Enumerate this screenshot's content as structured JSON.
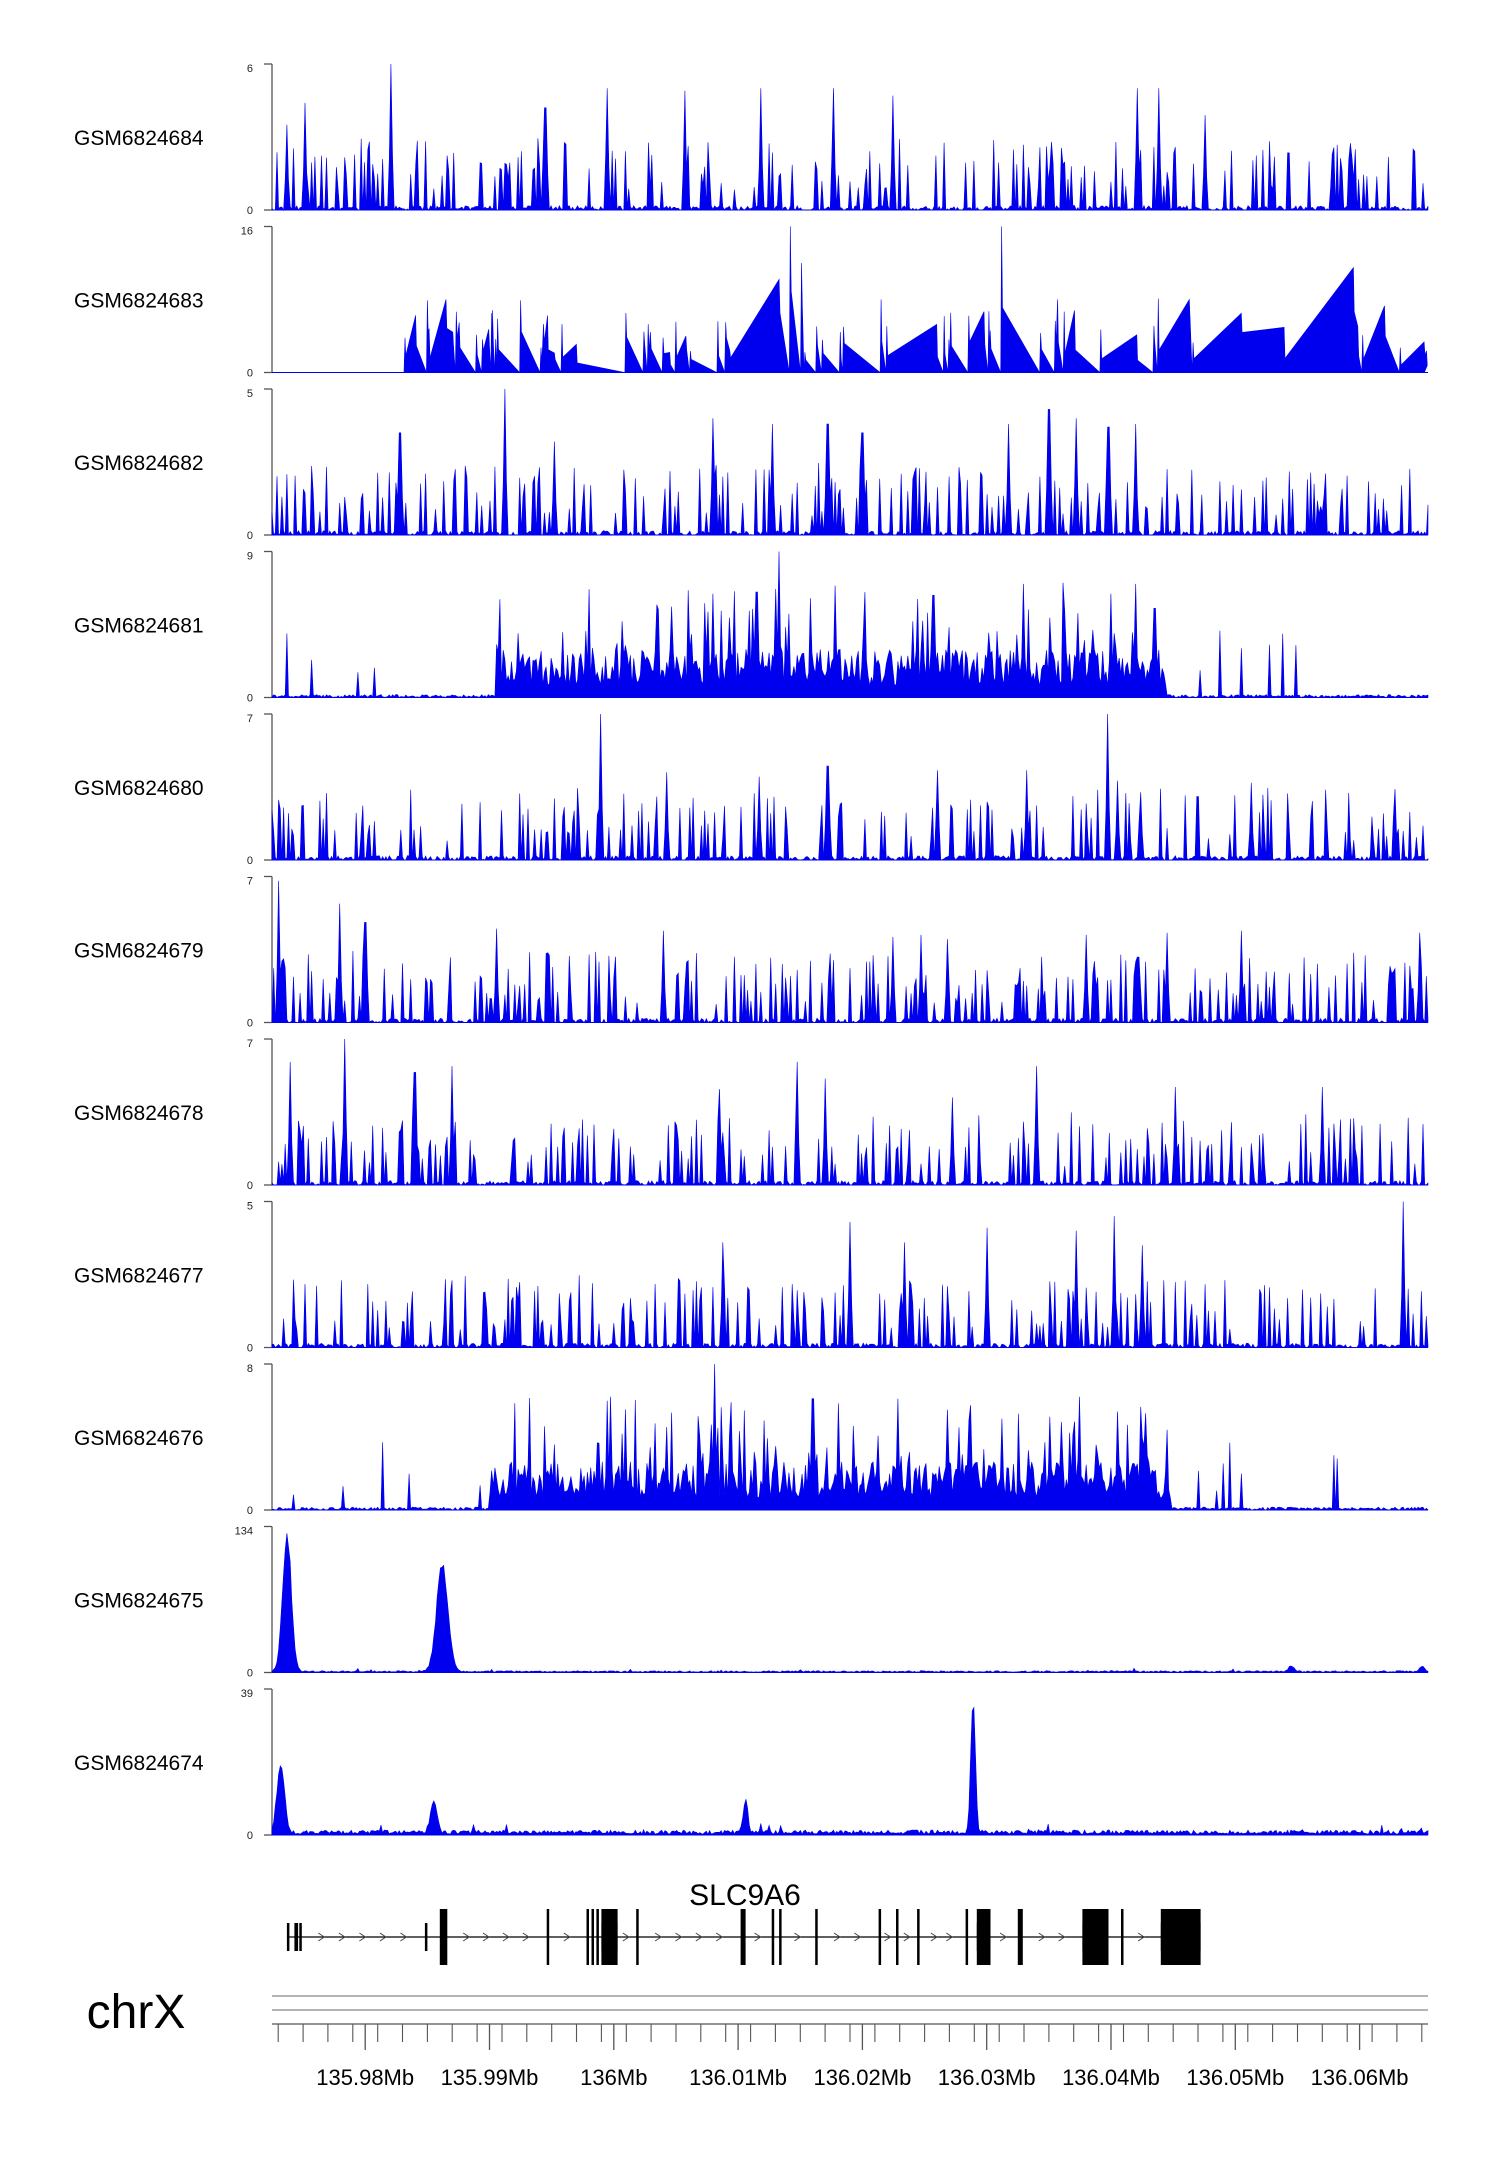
{
  "chart_data": {
    "type": "area",
    "title": "",
    "chromosome": "chrX",
    "gene": "SLC9A6",
    "colors": {
      "signal": "#0000ee",
      "axis": "#555555",
      "gene": "#000000"
    },
    "grid": false,
    "legend": "none",
    "region": [
      135.9725,
      136.0655
    ],
    "x_ticks": [
      {
        "value": 135.98,
        "label": "135.98Mb"
      },
      {
        "value": 135.99,
        "label": "135.99Mb"
      },
      {
        "value": 136.0,
        "label": "136Mb"
      },
      {
        "value": 136.01,
        "label": "136.01Mb"
      },
      {
        "value": 136.02,
        "label": "136.02Mb"
      },
      {
        "value": 136.03,
        "label": "136.03Mb"
      },
      {
        "value": 136.04,
        "label": "136.04Mb"
      },
      {
        "value": 136.05,
        "label": "136.05Mb"
      },
      {
        "value": 136.06,
        "label": "136.06Mb"
      }
    ],
    "tracks": [
      {
        "name": "GSM6824684",
        "ymax": 6,
        "ymin_label": "0",
        "ymax_label": "6",
        "profile": "sparse",
        "seed": 11,
        "peaks": [
          [
            135.9821,
            6.0
          ],
          [
            135.9737,
            3.5
          ],
          [
            135.9752,
            4.4
          ],
          [
            135.9945,
            4.2
          ],
          [
            135.9995,
            5.0
          ],
          [
            136.0057,
            4.9
          ],
          [
            136.0118,
            5.0
          ],
          [
            136.0177,
            5.0
          ],
          [
            136.0225,
            4.7
          ],
          [
            136.0421,
            5.0
          ],
          [
            136.0438,
            5.0
          ],
          [
            136.0476,
            3.9
          ]
        ]
      },
      {
        "name": "GSM6824683",
        "ymax": 16,
        "ymin_label": "0",
        "ymax_label": "16",
        "profile": "triangles",
        "seed": 23,
        "peaks": [
          [
            135.9832,
            3.8
          ],
          [
            135.985,
            7.9
          ],
          [
            135.9865,
            8.0
          ],
          [
            135.9876,
            8.0
          ],
          [
            135.9925,
            7.9
          ],
          [
            136.0058,
            4.0
          ],
          [
            136.009,
            5.5
          ],
          [
            136.0133,
            10.2
          ],
          [
            136.0142,
            16.0
          ],
          [
            136.0151,
            12.0
          ],
          [
            136.0215,
            8.0
          ],
          [
            136.0312,
            16.0
          ],
          [
            136.0357,
            8.0
          ],
          [
            136.0438,
            8.1
          ],
          [
            136.0463,
            8.0
          ],
          [
            136.0595,
            11.5
          ],
          [
            136.062,
            7.3
          ]
        ]
      },
      {
        "name": "GSM6824682",
        "ymax": 5,
        "ymin_label": "0",
        "ymax_label": "5",
        "profile": "sparse",
        "seed": 37,
        "peaks": [
          [
            135.9912,
            5.0
          ],
          [
            135.9828,
            3.5
          ],
          [
            135.9952,
            3.2
          ],
          [
            136.008,
            4.0
          ],
          [
            136.0128,
            3.8
          ],
          [
            136.0172,
            3.8
          ],
          [
            136.02,
            3.5
          ],
          [
            136.0318,
            3.8
          ],
          [
            136.035,
            4.3
          ],
          [
            136.0372,
            4.0
          ],
          [
            136.0398,
            3.7
          ],
          [
            136.042,
            3.8
          ]
        ]
      },
      {
        "name": "GSM6824681",
        "ymax": 9,
        "ymin_label": "0",
        "ymax_label": "9",
        "profile": "dense",
        "seed": 41,
        "dense": [
          135.9905,
          136.0445
        ],
        "peaks": [
          [
            136.0133,
            9.0
          ],
          [
            136.008,
            6.4
          ],
          [
            136.0115,
            6.5
          ],
          [
            136.0178,
            6.9
          ],
          [
            136.0202,
            6.5
          ],
          [
            136.0257,
            6.3
          ],
          [
            136.033,
            7.0
          ],
          [
            136.042,
            7.0
          ],
          [
            136.0435,
            5.5
          ]
        ]
      },
      {
        "name": "GSM6824680",
        "ymax": 7,
        "ymin_label": "0",
        "ymax_label": "7",
        "profile": "sparse",
        "seed": 53,
        "peaks": [
          [
            135.9989,
            7.0
          ],
          [
            136.0043,
            4.2
          ],
          [
            136.0117,
            4.0
          ],
          [
            136.0172,
            4.5
          ],
          [
            136.026,
            4.3
          ],
          [
            136.0332,
            4.3
          ],
          [
            136.0397,
            7.0
          ],
          [
            136.0405,
            3.8
          ],
          [
            136.0513,
            3.7
          ],
          [
            136.0628,
            3.4
          ]
        ]
      },
      {
        "name": "GSM6824679",
        "ymax": 7,
        "ymin_label": "0",
        "ymax_label": "7",
        "profile": "sparse",
        "seed": 67,
        "peaks": [
          [
            135.973,
            6.8
          ],
          [
            135.9779,
            5.7
          ],
          [
            135.98,
            4.8
          ],
          [
            135.9906,
            4.5
          ],
          [
            136.004,
            4.4
          ],
          [
            136.0225,
            4.1
          ],
          [
            136.0247,
            4.2
          ],
          [
            136.0268,
            4.0
          ],
          [
            136.038,
            4.2
          ],
          [
            136.0445,
            4.3
          ],
          [
            136.0505,
            4.4
          ],
          [
            136.0648,
            4.3
          ]
        ]
      },
      {
        "name": "GSM6824678",
        "ymax": 7,
        "ymin_label": "0",
        "ymax_label": "7",
        "profile": "sparse",
        "seed": 79,
        "peaks": [
          [
            135.974,
            5.9
          ],
          [
            135.9783,
            7.0
          ],
          [
            135.984,
            5.4
          ],
          [
            135.987,
            5.7
          ],
          [
            136.0085,
            4.6
          ],
          [
            136.0147,
            5.9
          ],
          [
            136.017,
            5.1
          ],
          [
            136.0272,
            4.2
          ],
          [
            136.034,
            5.7
          ],
          [
            136.0452,
            4.7
          ],
          [
            136.057,
            4.7
          ]
        ]
      },
      {
        "name": "GSM6824677",
        "ymax": 5,
        "ymin_label": "0",
        "ymax_label": "5",
        "profile": "sparse",
        "seed": 83,
        "peaks": [
          [
            136.0088,
            3.6
          ],
          [
            136.019,
            4.3
          ],
          [
            136.0234,
            3.6
          ],
          [
            136.03,
            4.1
          ],
          [
            136.0372,
            4.0
          ],
          [
            136.0403,
            4.5
          ],
          [
            136.0425,
            3.5
          ],
          [
            136.0635,
            5.0
          ]
        ]
      },
      {
        "name": "GSM6824676",
        "ymax": 8,
        "ymin_label": "0",
        "ymax_label": "8",
        "profile": "dense",
        "seed": 97,
        "dense": [
          135.99,
          136.0448
        ],
        "peaks": [
          [
            135.9997,
            6.2
          ],
          [
            136.0081,
            8.0
          ],
          [
            136.0094,
            5.9
          ],
          [
            136.016,
            6.1
          ],
          [
            136.0228,
            6.1
          ],
          [
            136.0312,
            5.0
          ],
          [
            136.0405,
            5.4
          ],
          [
            136.0428,
            5.3
          ]
        ]
      },
      {
        "name": "GSM6824675",
        "ymax": 134,
        "ymin_label": "0",
        "ymax_label": "134",
        "profile": "smooth",
        "seed": 101,
        "base": 1.5,
        "peaks": [
          [
            135.9737,
            134,
            0.00035
          ],
          [
            135.9862,
            105,
            0.00045
          ],
          [
            136.0545,
            6,
            0.0002
          ],
          [
            136.065,
            5,
            0.0002
          ]
        ]
      },
      {
        "name": "GSM6824674",
        "ymax": 39,
        "ymin_label": "0",
        "ymax_label": "39",
        "profile": "smooth",
        "seed": 113,
        "base": 1.2,
        "peaks": [
          [
            135.9732,
            19,
            0.0003
          ],
          [
            135.9855,
            9,
            0.00025
          ],
          [
            136.0106,
            9,
            0.00018
          ],
          [
            136.0289,
            39,
            0.00018
          ]
        ]
      }
    ],
    "gene_model": {
      "strand": "+",
      "start": 135.9737,
      "end": 136.0465,
      "exons": [
        [
          135.9737,
          135.9739,
          "s"
        ],
        [
          135.9743,
          135.9746,
          "s"
        ],
        [
          135.9747,
          135.9749,
          "s"
        ],
        [
          135.9848,
          135.985,
          "s"
        ],
        [
          135.986,
          135.9866,
          "t"
        ],
        [
          135.9946,
          135.9948,
          "t"
        ],
        [
          135.9978,
          135.998,
          "t"
        ],
        [
          135.9982,
          135.9984,
          "t"
        ],
        [
          135.9986,
          135.9988,
          "t"
        ],
        [
          135.999,
          136.0003,
          "t"
        ],
        [
          136.0018,
          136.002,
          "t"
        ],
        [
          136.0102,
          136.0106,
          "t"
        ],
        [
          136.0127,
          136.0129,
          "t"
        ],
        [
          136.0133,
          136.0135,
          "t"
        ],
        [
          136.0162,
          136.0164,
          "t"
        ],
        [
          136.0213,
          136.0215,
          "t"
        ],
        [
          136.0227,
          136.0229,
          "t"
        ],
        [
          136.0244,
          136.0246,
          "t"
        ],
        [
          136.0283,
          136.0285,
          "t"
        ],
        [
          136.0292,
          136.0303,
          "t"
        ],
        [
          136.0325,
          136.0329,
          "t"
        ],
        [
          136.0377,
          136.0398,
          "t"
        ],
        [
          136.0408,
          136.041,
          "t"
        ],
        [
          136.044,
          136.0472,
          "t"
        ]
      ]
    }
  }
}
